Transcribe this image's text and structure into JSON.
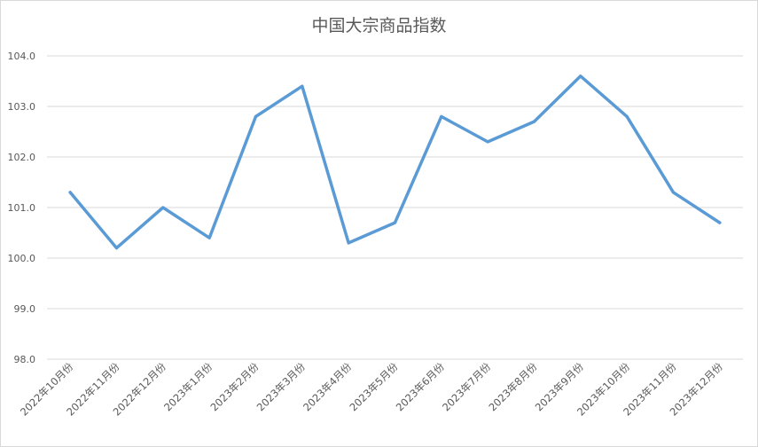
{
  "chart_data": {
    "type": "line",
    "title": "中国大宗商品指数",
    "categories": [
      "2022年10月份",
      "2022年11月份",
      "2022年12月份",
      "2023年1月份",
      "2023年2月份",
      "2023年3月份",
      "2023年4月份",
      "2023年5月份",
      "2023年6月份",
      "2023年7月份",
      "2023年8月份",
      "2023年9月份",
      "2023年10月份",
      "2023年11月份",
      "2023年12月份"
    ],
    "series": [
      {
        "values": [
          101.3,
          100.2,
          101.0,
          100.4,
          102.8,
          103.4,
          100.3,
          100.7,
          102.8,
          102.3,
          102.7,
          103.6,
          102.8,
          101.3,
          100.7
        ],
        "color": "#5B9BD5"
      }
    ],
    "ylim": [
      98,
      104
    ],
    "yticks": [
      "98.0",
      "99.0",
      "100.0",
      "101.0",
      "102.0",
      "103.0",
      "104.0"
    ],
    "grid": true,
    "legend": "none"
  }
}
